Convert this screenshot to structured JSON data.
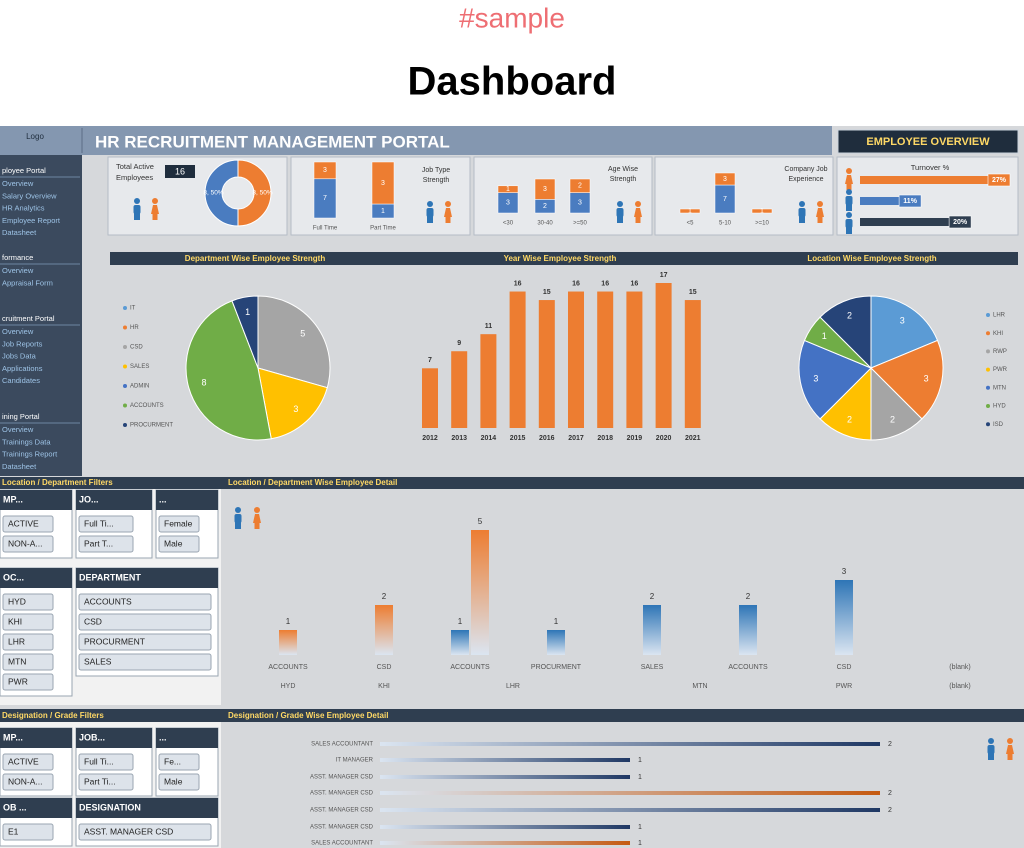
{
  "header": {
    "tag": "#sample",
    "title": "Dashboard"
  },
  "portal": {
    "logo": "Logo",
    "title": "HR RECRUITMENT MANAGEMENT PORTAL",
    "overview": "EMPLOYEE OVERVIEW"
  },
  "sidebar": [
    {
      "title": "ployee Portal",
      "items": [
        "Overview",
        "Salary Overview",
        "HR Analytics",
        "Employee Report",
        "Datasheet"
      ]
    },
    {
      "title": "formance",
      "items": [
        "Overview",
        "Appraisal Form"
      ]
    },
    {
      "title": "cruitment Portal",
      "items": [
        "Overview",
        "Job Reports",
        "Jobs Data",
        "Applications",
        "Candidates"
      ]
    },
    {
      "title": "ining Portal",
      "items": [
        "Overview",
        "Trainings Data",
        "Trainings Report",
        "Datasheet"
      ]
    }
  ],
  "kpis": {
    "total_label": [
      "Total Active",
      "Employees"
    ],
    "total": 16,
    "job_type_label": [
      "Job Type",
      "Strength"
    ],
    "age_label": [
      "Age Wise",
      "Strength"
    ],
    "experience_label": [
      "Company Job",
      "Experience"
    ],
    "turnover_label": "Turnover %"
  },
  "sections": {
    "department": "Department Wise Employee Strength",
    "year": "Year Wise Employee Strength",
    "location": "Location Wise Employee Strength",
    "loc_filters": "Location / Department Filters",
    "loc_detail": "Location / Department Wise Employee Detail",
    "desig_filters": "Designation / Grade Filters",
    "desig_detail": "Designation / Grade Wise Employee Detail"
  },
  "slicers": [
    {
      "title": "MP...",
      "items": [
        "ACTIVE",
        "NON-A..."
      ]
    },
    {
      "title": "JO...",
      "items": [
        "Full Ti...",
        "Part T..."
      ]
    },
    {
      "title": "...",
      "items": [
        "Female",
        "Male"
      ]
    },
    {
      "title": "OC...",
      "items": [
        "HYD",
        "KHI",
        "LHR",
        "MTN",
        "PWR"
      ]
    },
    {
      "title": "DEPARTMENT",
      "items": [
        "ACCOUNTS",
        "CSD",
        "PROCURMENT",
        "SALES"
      ]
    },
    {
      "title": "MP...",
      "items": [
        "ACTIVE",
        "NON-A..."
      ]
    },
    {
      "title": "JOB...",
      "items": [
        "Full Ti...",
        "Part Ti..."
      ]
    },
    {
      "title": "...",
      "items": [
        "Fe...",
        "Male"
      ]
    },
    {
      "title": "OB ...",
      "items": [
        "E1"
      ]
    },
    {
      "title": "DESIGNATION",
      "items": [
        "ASST. MANAGER CSD"
      ]
    }
  ],
  "chart_data": [
    {
      "type": "pie",
      "donut": true,
      "values": [
        8,
        8
      ],
      "value_labels": [
        "8, 50%",
        "8, 50%"
      ],
      "colors": [
        "#ed7d31",
        "#4a7cc0"
      ]
    },
    {
      "type": "stacked_bar",
      "percent": true,
      "categories": [
        "Full Time",
        "Part Time"
      ],
      "series": [
        {
          "color": "#4a7cc0",
          "values": [
            7,
            1
          ]
        },
        {
          "color": "#ed7d31",
          "values": [
            3,
            3
          ]
        }
      ]
    },
    {
      "type": "stacked_bar",
      "percent": false,
      "categories": [
        "<30",
        "30-40",
        ">=50"
      ],
      "series": [
        {
          "color": "#4a7cc0",
          "values": [
            3,
            2,
            3
          ]
        },
        {
          "color": "#ed7d31",
          "values": [
            1,
            3,
            2
          ]
        }
      ]
    },
    {
      "type": "stacked_bar",
      "percent": false,
      "categories": [
        "<5",
        "5-10",
        ">=10"
      ],
      "series": [
        {
          "color": "#4a7cc0",
          "values": [
            null,
            7,
            null
          ]
        },
        {
          "color": "#ed7d31",
          "values": [
            1,
            3,
            1
          ]
        }
      ]
    },
    {
      "type": "hbar",
      "values": [
        27,
        11,
        20
      ],
      "value_labels": [
        "27%",
        "11%",
        "20%"
      ],
      "colors": [
        "#ed7d31",
        "#4a7cc0",
        "#2f3e50"
      ]
    },
    {
      "type": "pie",
      "categories": [
        "IT",
        "HR",
        "CSD",
        "SALES",
        "ADMIN",
        "ACCOUNTS",
        "PROCURMENT"
      ],
      "values": [
        0,
        0,
        5,
        3,
        0,
        8,
        1
      ],
      "colors": [
        "#5b9bd5",
        "#ed7d31",
        "#a5a5a5",
        "#ffc000",
        "#4472c4",
        "#70ad47",
        "#264478"
      ]
    },
    {
      "type": "bar",
      "categories": [
        "2012",
        "2013",
        "2014",
        "2015",
        "2016",
        "2017",
        "2018",
        "2019",
        "2020",
        "2021"
      ],
      "values": [
        7,
        9,
        11,
        16,
        15,
        16,
        16,
        16,
        17,
        15
      ],
      "color": "#ed7d31"
    },
    {
      "type": "pie",
      "categories": [
        "LHR",
        "KHI",
        "RWP",
        "PWR",
        "MTN",
        "HYD",
        "ISD"
      ],
      "values": [
        3,
        3,
        2,
        2,
        3,
        1,
        2
      ],
      "colors": [
        "#5b9bd5",
        "#ed7d31",
        "#a5a5a5",
        "#ffc000",
        "#4472c4",
        "#70ad47",
        "#264478"
      ]
    },
    {
      "type": "grouped_bar",
      "categories": [
        "ACCOUNTS",
        "CSD",
        "ACCOUNTS",
        "PROCURMENT",
        "SALES",
        "ACCOUNTS",
        "CSD",
        "(blank)"
      ],
      "groups": [
        "HYD",
        "KHI",
        "LHR",
        "LHR",
        "MTN",
        "MTN",
        "PWR",
        "(blank)"
      ],
      "series": [
        {
          "color": "#2e75b6",
          "values": [
            null,
            null,
            1,
            1,
            2,
            2,
            3,
            null
          ]
        },
        {
          "color": "#ed7d31",
          "values": [
            1,
            2,
            5,
            null,
            null,
            null,
            null,
            null
          ]
        }
      ]
    },
    {
      "type": "hbar",
      "categories": [
        "SALES ACCOUNTANT",
        "IT MANAGER",
        "ASST. MANAGER CSD",
        "ASST. MANAGER CSD",
        "ASST. MANAGER CSD",
        "ASST. MANAGER CSD",
        "SALES ACCOUNTANT"
      ],
      "values": [
        2,
        1,
        1,
        2,
        2,
        1,
        1
      ],
      "colors": [
        "#1f3864",
        "#1f3864",
        "#1f3864",
        "#c55a11",
        "#1f3864",
        "#1f3864",
        "#c55a11"
      ]
    }
  ]
}
